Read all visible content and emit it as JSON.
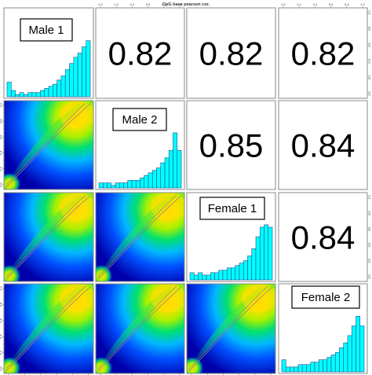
{
  "chart_data": {
    "type": "scatter-matrix",
    "title": "CpG base pearson cor.",
    "variables": [
      "Male 1",
      "Male 2",
      "Female 1",
      "Female 2"
    ],
    "correlations": [
      {
        "row": 0,
        "col": 1,
        "value": "0.82"
      },
      {
        "row": 0,
        "col": 2,
        "value": "0.82"
      },
      {
        "row": 0,
        "col": 3,
        "value": "0.82"
      },
      {
        "row": 1,
        "col": 2,
        "value": "0.85"
      },
      {
        "row": 1,
        "col": 3,
        "value": "0.84"
      },
      {
        "row": 2,
        "col": 3,
        "value": "0.84"
      }
    ],
    "histograms": [
      {
        "variable": "Male 1",
        "values": [
          7,
          3,
          1,
          2,
          1,
          2,
          2,
          2,
          3,
          4,
          5,
          6,
          8,
          10,
          13,
          16,
          19,
          21,
          24,
          27
        ]
      },
      {
        "variable": "Male 2",
        "values": [
          2,
          2,
          2,
          1,
          2,
          2,
          2,
          3,
          3,
          3,
          4,
          5,
          6,
          7,
          8,
          10,
          12,
          15,
          22,
          15
        ]
      },
      {
        "variable": "Female 1",
        "values": [
          3,
          2,
          3,
          2,
          2,
          3,
          3,
          4,
          4,
          5,
          5,
          6,
          7,
          8,
          10,
          13,
          18,
          22,
          23,
          22
        ]
      },
      {
        "variable": "Female 2",
        "values": [
          5,
          2,
          2,
          2,
          3,
          3,
          3,
          4,
          4,
          5,
          5,
          6,
          7,
          8,
          10,
          12,
          15,
          19,
          23,
          19
        ]
      }
    ],
    "density_colors": [
      "#0000aa",
      "#0050ff",
      "#00b8ff",
      "#00e070",
      "#a8f000",
      "#ffe000",
      "#ffd000"
    ],
    "fit_line_color": "#888888",
    "ticks": {
      "bottom": [
        "0.0",
        "0.2",
        "0.4",
        "0.6",
        "0.8",
        "1.0"
      ],
      "left": [
        "0.0",
        "0.2",
        "0.4",
        "0.6",
        "0.8",
        "1.0"
      ],
      "top": [
        "0.0",
        "0.2",
        "0.4",
        "0.6",
        "0.8",
        "1.0"
      ],
      "right": [
        "0.0",
        "0.2",
        "0.4",
        "0.6",
        "0.8",
        "1.0"
      ]
    },
    "grid": false,
    "legend": "none"
  }
}
